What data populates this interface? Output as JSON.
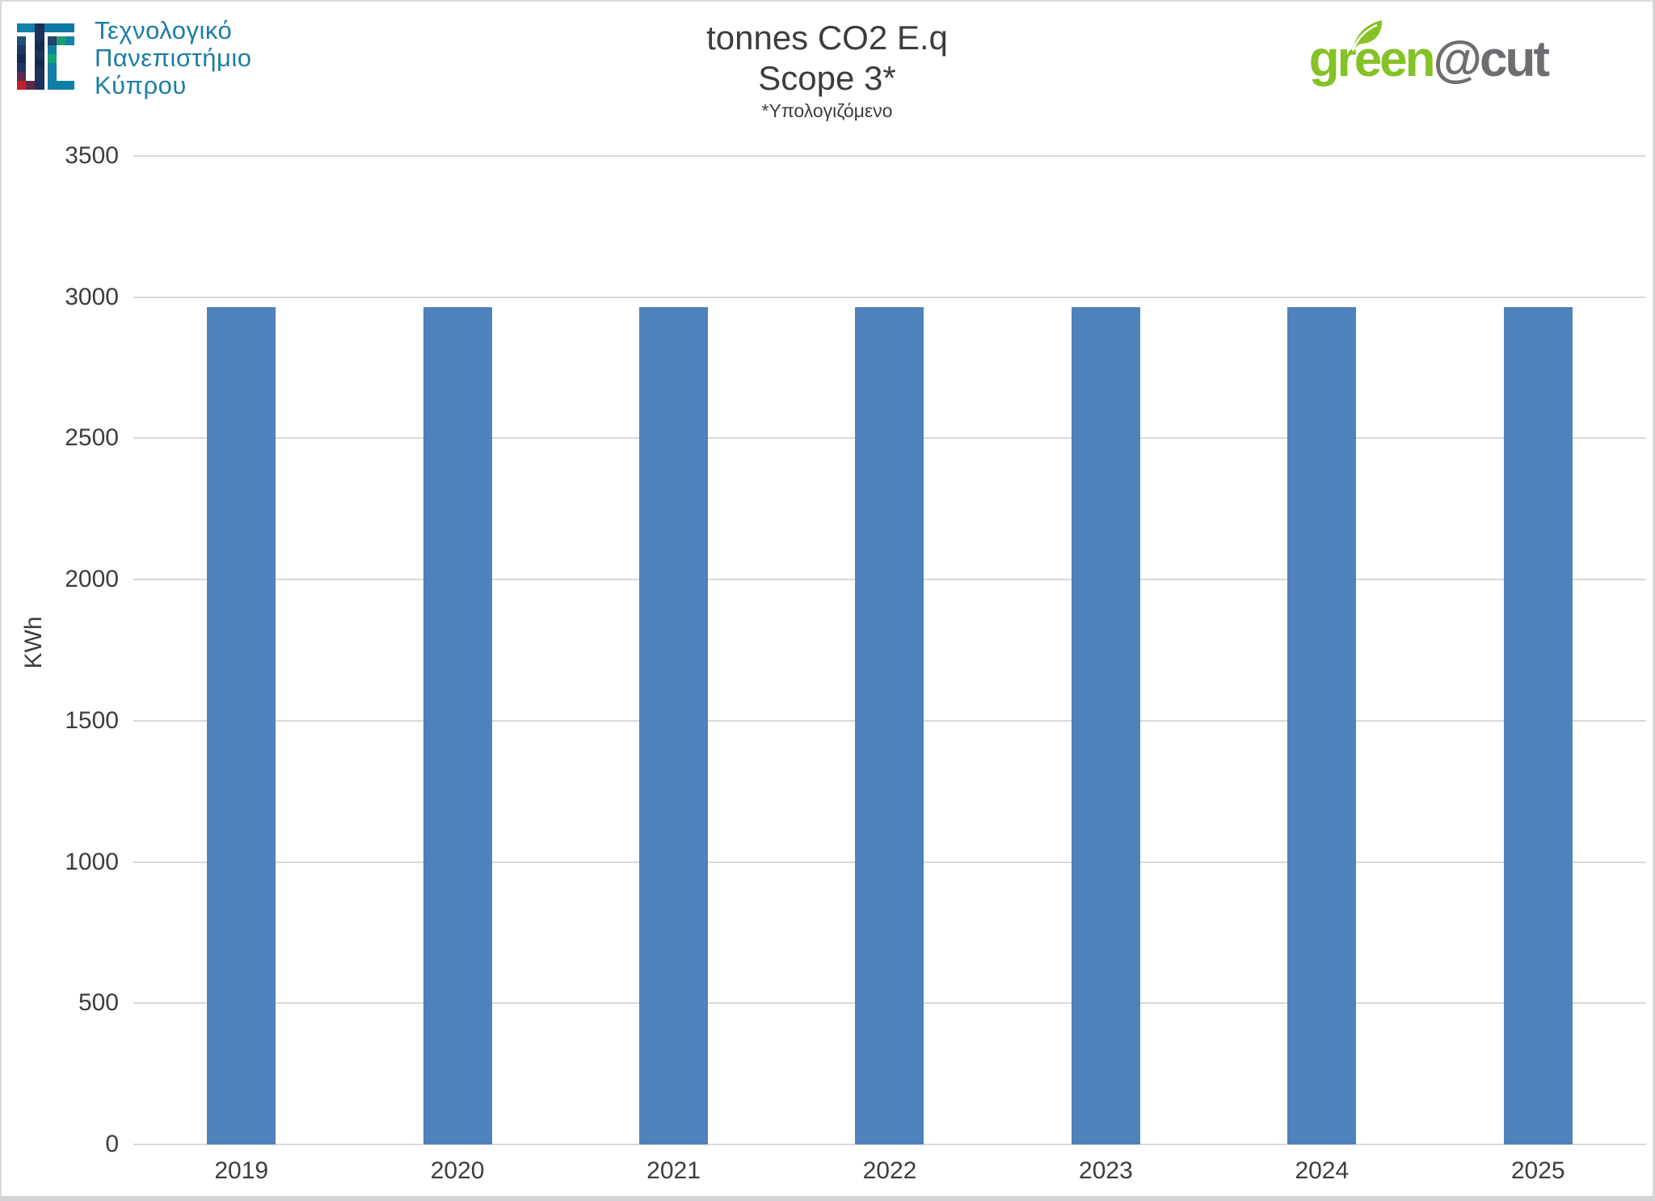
{
  "header": {
    "university": {
      "line1": "Τεχνολογικό",
      "line2": "Πανεπιστήμιο",
      "line3": "Κύπρου"
    },
    "brand": {
      "green_part": "green",
      "gray_part": "@cut"
    }
  },
  "chart_data": {
    "type": "bar",
    "title": "tonnes CO2 E.q",
    "subtitle": "Scope 3*",
    "footnote": "*Υπολογιζόμενο",
    "xlabel": "",
    "ylabel": "KWh",
    "categories": [
      "2019",
      "2020",
      "2021",
      "2022",
      "2023",
      "2024",
      "2025"
    ],
    "values": [
      2965,
      2965,
      2965,
      2965,
      2965,
      2965,
      2965
    ],
    "ylim": [
      0,
      3500
    ],
    "yticks": [
      0,
      500,
      1000,
      1500,
      2000,
      2500,
      3000,
      3500
    ],
    "grid": true,
    "legend": "none",
    "bar_color": "#4f81bd"
  },
  "colors": {
    "bar_blue": "#4f81bd",
    "gridline_gray": "#d9d9d9",
    "text_dark": "#3d3d3d",
    "university_teal": "#1b7ea6",
    "brand_green": "#84c225",
    "brand_gray": "#6d6e71"
  },
  "icons": {
    "university_logo": "cut-mosaic-logo",
    "brand_leaf": "leaf-icon"
  }
}
